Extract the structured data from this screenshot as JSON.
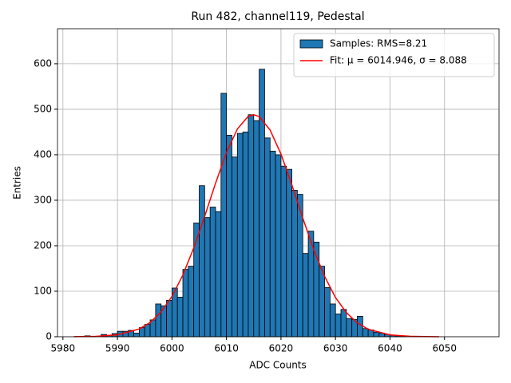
{
  "chart_data": {
    "type": "histogram",
    "title": "Run 482, channel119, Pedestal",
    "x_label": "ADC Counts",
    "y_label": "Entries",
    "bins": [
      5983,
      5984,
      5985,
      5986,
      5987,
      5988,
      5989,
      5990,
      5991,
      5992,
      5993,
      5994,
      5995,
      5996,
      5997,
      5998,
      5999,
      6000,
      6001,
      6002,
      6003,
      6004,
      6005,
      6006,
      6007,
      6008,
      6009,
      6010,
      6011,
      6012,
      6013,
      6014,
      6015,
      6016,
      6017,
      6018,
      6019,
      6020,
      6021,
      6022,
      6023,
      6024,
      6025,
      6026,
      6027,
      6028,
      6029,
      6030,
      6031,
      6032,
      6033,
      6034,
      6035,
      6036,
      6037,
      6038,
      6039,
      6040,
      6041,
      6042,
      6043
    ],
    "series": [
      {
        "name": "Samples: RMS=8.21",
        "color": "#1f77b4",
        "values": [
          0,
          2,
          1,
          0,
          5,
          3,
          7,
          12,
          12,
          14,
          8,
          20,
          27,
          37,
          72,
          68,
          80,
          107,
          87,
          148,
          155,
          250,
          332,
          262,
          285,
          275,
          535,
          443,
          395,
          447,
          450,
          488,
          475,
          588,
          437,
          408,
          400,
          375,
          368,
          322,
          313,
          183,
          232,
          208,
          155,
          108,
          72,
          50,
          60,
          40,
          38,
          45,
          18,
          15,
          10,
          8,
          5,
          3,
          2,
          1
        ]
      }
    ],
    "fit": {
      "name": "Fit: μ = 6014.946, σ = 8.088",
      "color": "#ff0000",
      "x": [
        5982,
        5986,
        5990,
        5994,
        5996,
        5998,
        6000,
        6002,
        6004,
        6006,
        6008,
        6010,
        6012,
        6014,
        6015,
        6016,
        6018,
        6020,
        6022,
        6024,
        6026,
        6028,
        6030,
        6032,
        6034,
        6036,
        6040,
        6044,
        6049
      ],
      "values": [
        0.12,
        0.81,
        4.2,
        17.0,
        31.4,
        54.4,
        88.5,
        135.6,
        195.3,
        264.7,
        337.5,
        404.8,
        456.7,
        484.7,
        488,
        483.9,
        454.4,
        401.5,
        333.6,
        260.8,
        191.8,
        132.7,
        86.3,
        52.9,
        30.4,
        16.5,
        4.0,
        0.77,
        0.07
      ]
    },
    "xlim": [
      5979,
      6060
    ],
    "ylim": [
      0,
      677
    ],
    "xticks": [
      5980,
      5990,
      6000,
      6010,
      6020,
      6030,
      6040,
      6050
    ],
    "yticks": [
      0,
      100,
      200,
      300,
      400,
      500,
      600
    ],
    "grid": true,
    "legend": "upper right"
  }
}
